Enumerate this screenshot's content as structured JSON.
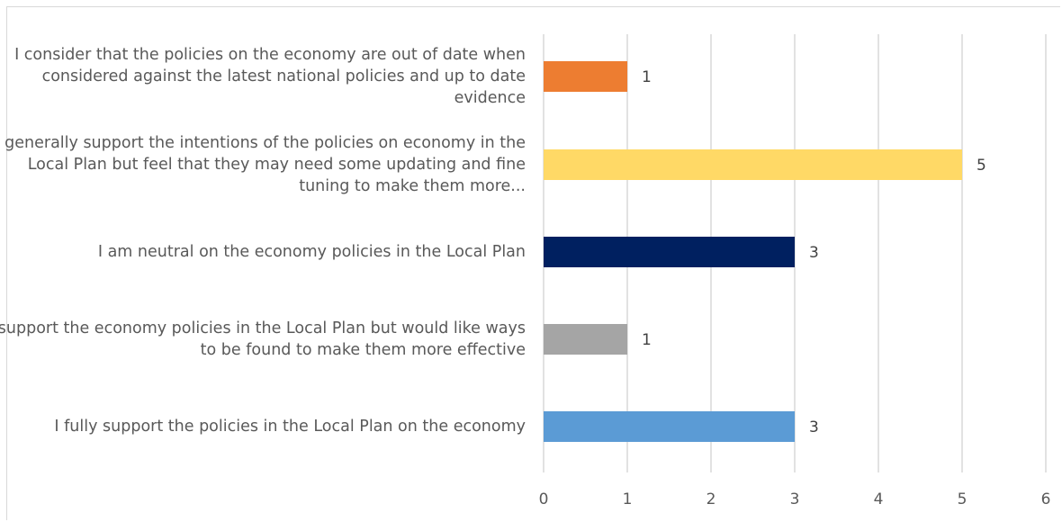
{
  "chart_data": {
    "type": "bar",
    "orientation": "horizontal",
    "title": "",
    "xlabel": "",
    "ylabel": "",
    "xlim": [
      0,
      6
    ],
    "grid": "vertical",
    "legend": "none",
    "categories": [
      "I consider that the policies on the economy are out of date when considered against the latest national policies and up to date evidence",
      "I generally support the intentions of the policies on economy in the Local Plan but feel that they may need some updating and fine tuning to make them more...",
      "I am neutral on the economy policies in the Local Plan",
      "I support the economy policies in the Local Plan but would like ways to be found to make them more effective",
      "I fully support the policies in the Local Plan on the economy"
    ],
    "values": [
      1,
      5,
      3,
      1,
      3
    ],
    "colors": [
      "#ed7d31",
      "#ffd966",
      "#002060",
      "#a5a5a5",
      "#5b9bd5"
    ],
    "ticks": [
      "0",
      "1",
      "2",
      "3",
      "4",
      "5",
      "6"
    ],
    "data_labels": [
      "1",
      "5",
      "3",
      "1",
      "3"
    ]
  }
}
